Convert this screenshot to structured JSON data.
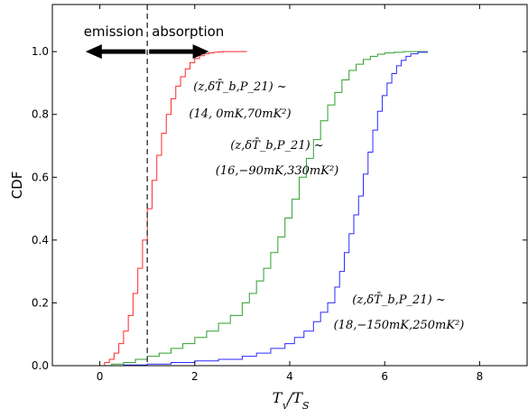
{
  "chart_data": {
    "type": "line",
    "xlabel": "T_γ/T_S",
    "ylabel": "CDF",
    "xlim": [
      -1,
      9
    ],
    "ylim": [
      0,
      1.15
    ],
    "xticks": [
      "0",
      "2",
      "4",
      "6",
      "8"
    ],
    "yticks": [
      "0.0",
      "0.2",
      "0.4",
      "0.6",
      "0.8",
      "1.0"
    ],
    "grid": false,
    "vline": {
      "x": 1.0,
      "style": "dashed",
      "color": "#444444"
    },
    "arrows": {
      "emission_label": "emission",
      "absorption_label": "absorption",
      "y": 1.0,
      "x_left": -0.3,
      "x_mid": 1.0,
      "x_right": 2.3
    },
    "series": [
      {
        "color": "#ff2a2a",
        "annotation": [
          "(z,δT̄_b,P_21) ~",
          "(14, 0mK,70mK²)"
        ],
        "x": [
          0.0,
          0.1,
          0.2,
          0.3,
          0.4,
          0.5,
          0.6,
          0.7,
          0.8,
          0.9,
          1.0,
          1.1,
          1.2,
          1.3,
          1.4,
          1.5,
          1.6,
          1.7,
          1.8,
          1.9,
          2.0,
          2.1,
          2.2,
          2.3,
          2.4,
          2.5,
          2.6,
          3.1
        ],
        "y": [
          0.0,
          0.01,
          0.02,
          0.04,
          0.07,
          0.11,
          0.16,
          0.23,
          0.31,
          0.4,
          0.5,
          0.59,
          0.67,
          0.74,
          0.8,
          0.85,
          0.89,
          0.92,
          0.945,
          0.965,
          0.978,
          0.987,
          0.993,
          0.996,
          0.998,
          0.999,
          1.0,
          1.0
        ]
      },
      {
        "color": "#2ca02c",
        "annotation": [
          "(z,δT̄_b,P_21) ~",
          "(16,−90mK,330mK²)"
        ],
        "x": [
          0.0,
          0.25,
          0.5,
          0.75,
          1.0,
          1.25,
          1.5,
          1.75,
          2.0,
          2.25,
          2.5,
          2.75,
          3.0,
          3.15,
          3.3,
          3.45,
          3.6,
          3.75,
          3.9,
          4.05,
          4.2,
          4.35,
          4.5,
          4.65,
          4.8,
          4.95,
          5.1,
          5.25,
          5.4,
          5.55,
          5.7,
          5.85,
          6.0,
          6.2,
          6.4,
          6.9
        ],
        "y": [
          0.0,
          0.005,
          0.01,
          0.02,
          0.03,
          0.04,
          0.055,
          0.07,
          0.09,
          0.11,
          0.135,
          0.16,
          0.2,
          0.23,
          0.27,
          0.31,
          0.36,
          0.41,
          0.47,
          0.53,
          0.6,
          0.66,
          0.72,
          0.78,
          0.83,
          0.87,
          0.91,
          0.94,
          0.96,
          0.975,
          0.985,
          0.992,
          0.996,
          0.998,
          1.0,
          1.0
        ]
      },
      {
        "color": "#2a2aff",
        "annotation": [
          "(z,δT̄_b,P_21) ~",
          "(18,−150mK,250mK²)"
        ],
        "x": [
          0.0,
          0.5,
          1.0,
          1.5,
          2.0,
          2.5,
          3.0,
          3.3,
          3.6,
          3.9,
          4.1,
          4.3,
          4.5,
          4.65,
          4.8,
          4.95,
          5.05,
          5.15,
          5.25,
          5.35,
          5.45,
          5.55,
          5.65,
          5.75,
          5.85,
          5.95,
          6.05,
          6.15,
          6.25,
          6.35,
          6.45,
          6.55,
          6.7,
          6.9
        ],
        "y": [
          0.0,
          0.002,
          0.005,
          0.01,
          0.015,
          0.02,
          0.03,
          0.04,
          0.055,
          0.07,
          0.09,
          0.11,
          0.14,
          0.17,
          0.2,
          0.25,
          0.3,
          0.36,
          0.42,
          0.48,
          0.54,
          0.61,
          0.68,
          0.75,
          0.81,
          0.86,
          0.9,
          0.93,
          0.955,
          0.972,
          0.985,
          0.993,
          0.998,
          1.0
        ]
      }
    ]
  }
}
